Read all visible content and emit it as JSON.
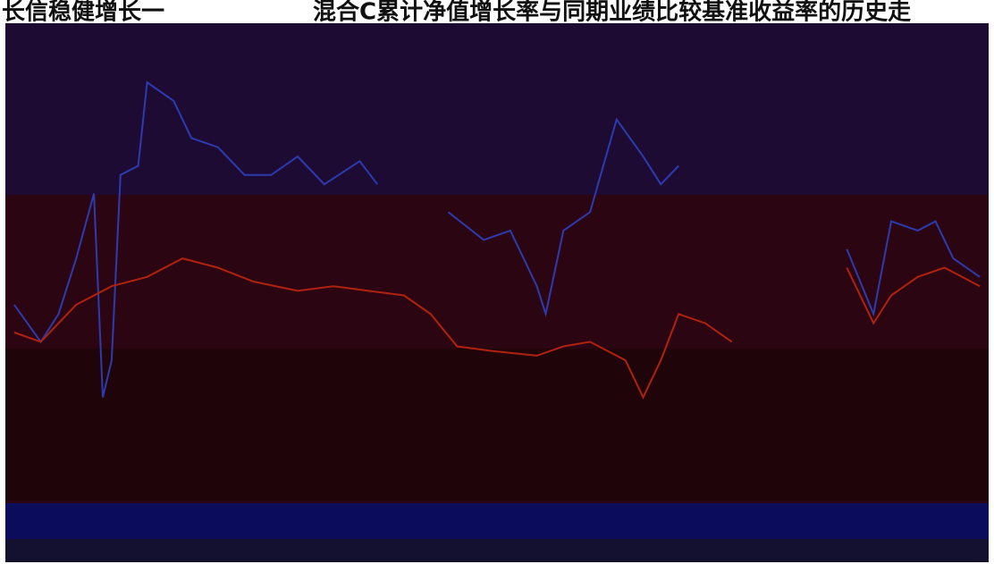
{
  "chart_data": {
    "type": "line",
    "title_parts": [
      "长信稳健增长一",
      "混合C累计净值增长率与同期业绩比较基准收益率的历史走"
    ],
    "xlim": [
      0,
      111
    ],
    "ylim": [
      -20,
      35
    ],
    "series": [
      {
        "color": "#2c3bb0",
        "x": [
          1,
          4,
          6,
          8,
          10,
          11,
          12,
          13,
          15,
          16,
          19,
          21,
          24,
          27,
          30,
          33,
          36,
          40,
          42,
          45,
          50,
          54,
          57,
          60,
          61,
          63,
          66,
          69,
          72,
          74,
          76,
          85,
          95,
          98,
          100,
          103,
          105,
          107,
          110
        ],
        "values": [
          5,
          1,
          4,
          10,
          17,
          -5,
          -1,
          19,
          20,
          29,
          27,
          23,
          22,
          19,
          19,
          21,
          18,
          20.5,
          18,
          null,
          15,
          12,
          13,
          7,
          4,
          13,
          15,
          25,
          21,
          18,
          20,
          null,
          11,
          4,
          14,
          13,
          14,
          10,
          8
        ]
      },
      {
        "color": "#b0220f",
        "x": [
          1,
          4,
          8,
          12,
          16,
          20,
          24,
          28,
          33,
          37,
          41,
          45,
          48,
          51,
          55,
          60,
          63,
          66,
          70,
          72,
          74,
          76,
          79,
          82,
          85,
          95,
          98,
          100,
          103,
          106,
          108,
          110
        ],
        "values": [
          2,
          1,
          5,
          7,
          8,
          10,
          9,
          7.5,
          6.5,
          7,
          6.5,
          6,
          4,
          0.5,
          0,
          -0.5,
          0.5,
          1,
          -1,
          -5,
          -1,
          4,
          3,
          1,
          null,
          9,
          3,
          6,
          8,
          9,
          8,
          7
        ]
      }
    ]
  }
}
